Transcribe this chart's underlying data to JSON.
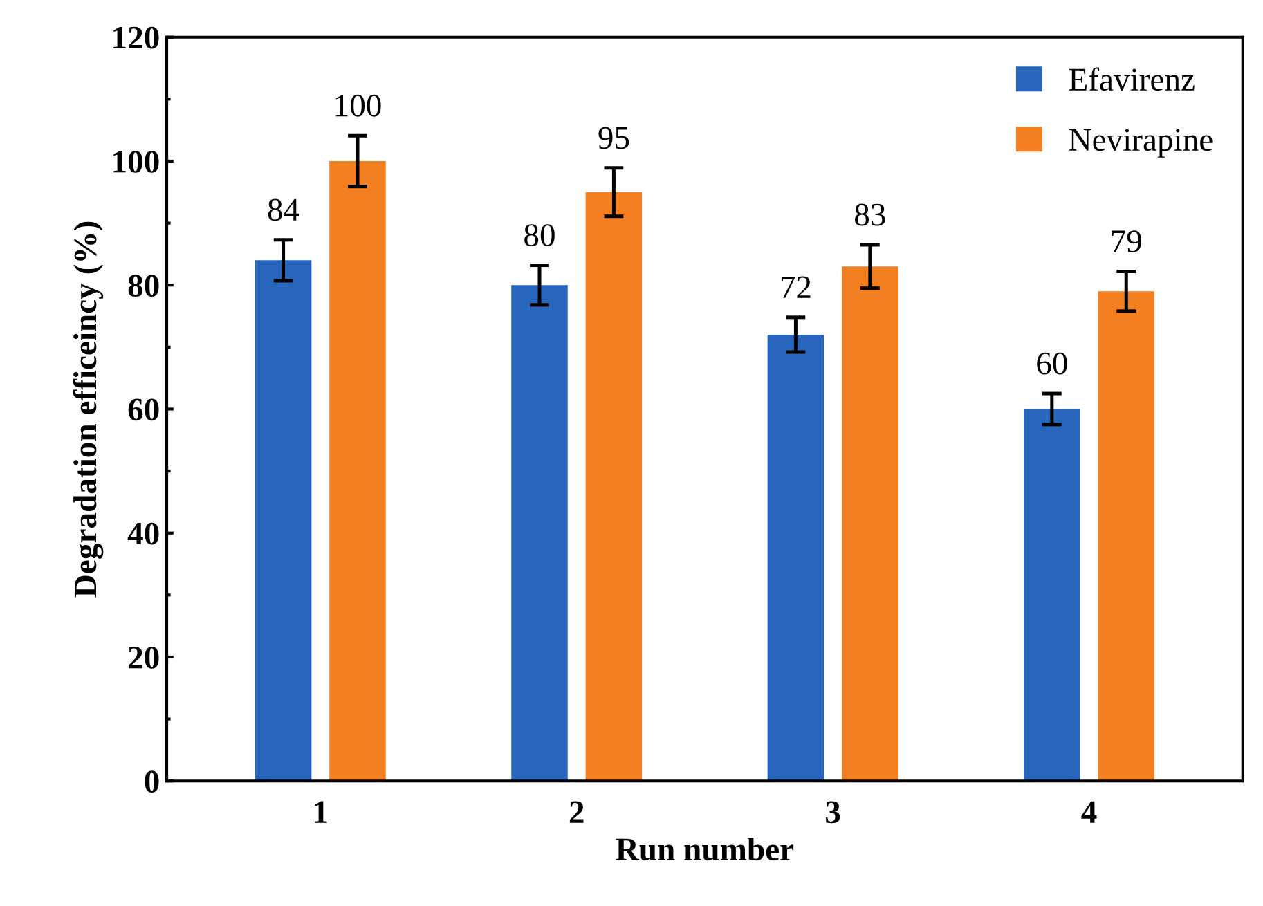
{
  "chart_data": {
    "type": "bar",
    "xlabel": "Run number",
    "ylabel": "Degradation efficeincy (%)",
    "categories": [
      "1",
      "2",
      "3",
      "4"
    ],
    "series": [
      {
        "name": "Efavirenz",
        "color": "#2866bd",
        "values": [
          84,
          80,
          72,
          60
        ],
        "errors": [
          3.3,
          3.2,
          2.8,
          2.5
        ]
      },
      {
        "name": "Nevirapine",
        "color": "#f47f20",
        "values": [
          100,
          95,
          83,
          79
        ],
        "errors": [
          4.1,
          3.9,
          3.5,
          3.2
        ]
      }
    ],
    "ylim": [
      0,
      120
    ],
    "yticks": [
      0,
      20,
      40,
      60,
      80,
      100,
      120
    ],
    "data_labels": true,
    "legend": "top right",
    "grid": false
  }
}
